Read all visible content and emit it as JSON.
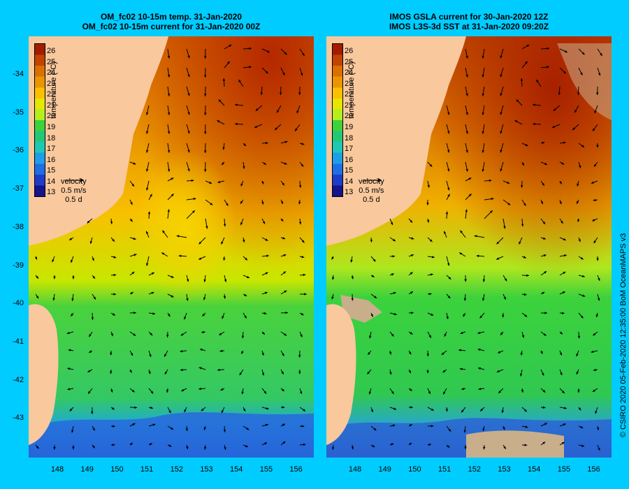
{
  "left_panel": {
    "title_line1": "OM_fc02 10-15m temp. 31-Jan-2020",
    "title_line2": "OM_fc02 10-15m current for 31-Jan-2020 00Z"
  },
  "right_panel": {
    "title_line1": "IMOS GSLA current for 30-Jan-2020 12Z",
    "title_line2": "IMOS L3S-3d SST at 31-Jan-2020 09:20Z"
  },
  "colorbar": {
    "title": "temperature (°C)",
    "ticks": [
      "26",
      "25",
      "24",
      "23",
      "22",
      "21",
      "20",
      "19",
      "18",
      "17",
      "16",
      "15",
      "14",
      "13"
    ],
    "colors": [
      "#a41c00",
      "#c24400",
      "#d97000",
      "#ea9500",
      "#f8c000",
      "#e6e600",
      "#b4ee1e",
      "#3cd23c",
      "#22c878",
      "#1ec8b4",
      "#1e9ee6",
      "#1e6ee6",
      "#1e3cc8",
      "#14148c"
    ]
  },
  "velocity_key": {
    "label": "velocity",
    "speed": "0.5 m/s",
    "duration": "0.5 d"
  },
  "axes": {
    "latitude_ticks": [
      "-34",
      "-35",
      "-36",
      "-37",
      "-38",
      "-39",
      "-40",
      "-41",
      "-42",
      "-43"
    ],
    "longitude_ticks": [
      "148",
      "149",
      "150",
      "151",
      "152",
      "153",
      "154",
      "155",
      "156"
    ]
  },
  "colors": {
    "background": "#00ccff",
    "land": "#f9c89c",
    "no_data": "#c9ae8c"
  },
  "credit": "© CSIRO 2020   05-Feb-2020 12:35:00 BoM OceanMAPS v3"
}
